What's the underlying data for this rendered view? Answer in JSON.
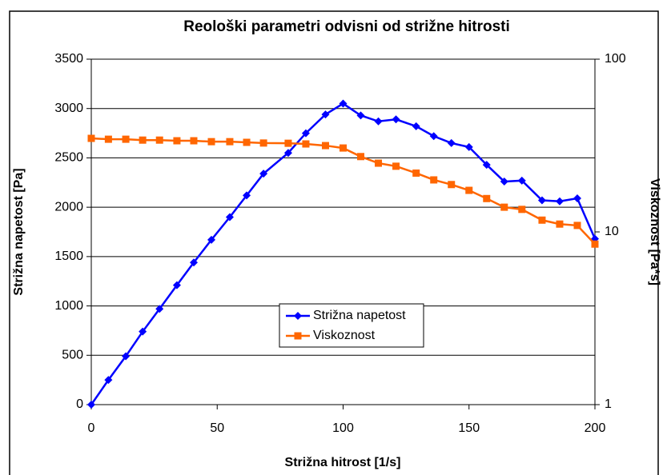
{
  "chart_data": {
    "type": "line",
    "title": "Reološki parametri odvisni od strižne hitrosti",
    "x_label": "Strižna hitrost [1/s]",
    "y_label": "Strižna napetost [Pa]",
    "y2_label": "Viskoznost [Pa*s]",
    "x": [
      0,
      6.8,
      13.7,
      20.4,
      27.1,
      34,
      40.7,
      47.7,
      55,
      61.7,
      68.4,
      78.2,
      85.2,
      93,
      100,
      107,
      114,
      121,
      129,
      136,
      143,
      150,
      157,
      164,
      171,
      179,
      186,
      193,
      200
    ],
    "series": [
      {
        "name": "Strižna napetost",
        "color": "#0000ff",
        "marker": "diamond",
        "values": [
          0,
          250,
          490,
          740,
          970,
          1210,
          1440,
          1670,
          1900,
          2120,
          2340,
          2550,
          2750,
          2940,
          3050,
          2930,
          2870,
          2890,
          2820,
          2720,
          2650,
          2610,
          2430,
          2260,
          2270,
          2070,
          2060,
          2090,
          1680
        ]
      },
      {
        "name": "Viskoznost",
        "color": "#ff6600",
        "marker": "square",
        "axis": "y2",
        "values": [
          34.8,
          34.4,
          34.4,
          34.0,
          34.0,
          33.7,
          33.7,
          33.3,
          33.3,
          33.0,
          32.7,
          32.6,
          32.3,
          31.6,
          30.6,
          27.3,
          25.0,
          24.0,
          21.9,
          20.0,
          18.8,
          17.4,
          15.6,
          13.9,
          13.5,
          11.7,
          11.1,
          10.9,
          8.5
        ]
      }
    ],
    "xlim": [
      0,
      200
    ],
    "xticks": [
      0,
      50,
      100,
      150,
      200
    ],
    "ylim": [
      0,
      3500
    ],
    "yticks": [
      0,
      500,
      1000,
      1500,
      2000,
      2500,
      3000,
      3500
    ],
    "y2lim": [
      1,
      100
    ],
    "y2ticks": [
      1,
      10,
      100
    ],
    "y2_log": true,
    "grid": true
  }
}
